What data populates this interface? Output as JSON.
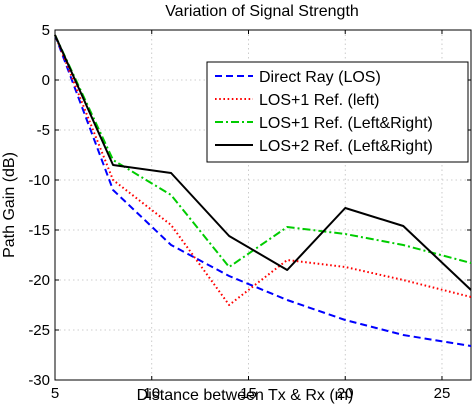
{
  "chart_data": {
    "type": "line",
    "title": "Variation of Signal Strength",
    "xlabel": "Distance between Tx & Rx (m)",
    "ylabel": "Path Gain (dB)",
    "xlim": [
      5,
      26.5
    ],
    "ylim": [
      -30,
      5
    ],
    "xticks": [
      5,
      10,
      15,
      20,
      25
    ],
    "yticks": [
      5,
      0,
      -5,
      -10,
      -15,
      -20,
      -25,
      -30
    ],
    "grid": true,
    "legend_position": "top-right",
    "series": [
      {
        "name": "Direct Ray (LOS)",
        "color": "#0000ff",
        "style": "dashed",
        "x": [
          5,
          8,
          11,
          14,
          17,
          20,
          23,
          26.5
        ],
        "y": [
          4.5,
          -11,
          -16.5,
          -19.6,
          -22,
          -24,
          -25.5,
          -26.6
        ]
      },
      {
        "name": "LOS+1 Ref. (left)",
        "color": "#ff0000",
        "style": "dotted",
        "x": [
          5,
          8,
          11,
          14,
          17,
          20,
          23,
          26.5
        ],
        "y": [
          4.5,
          -10,
          -14.5,
          -22.5,
          -18,
          -18.7,
          -20,
          -21.7
        ]
      },
      {
        "name": "LOS+1 Ref. (Left&Right)",
        "color": "#00cc00",
        "style": "dashdot",
        "x": [
          5,
          8,
          11,
          14,
          17,
          20,
          23,
          26.5
        ],
        "y": [
          4.5,
          -8,
          -11.5,
          -18.7,
          -14.7,
          -15.4,
          -16.5,
          -18.3
        ]
      },
      {
        "name": "LOS+2 Ref. (Left&Right)",
        "color": "#000000",
        "style": "solid",
        "x": [
          5,
          8,
          11,
          14,
          17,
          20,
          23,
          26.5
        ],
        "y": [
          4.5,
          -8.5,
          -9.3,
          -15.6,
          -19,
          -12.8,
          -14.6,
          -21
        ]
      }
    ]
  }
}
